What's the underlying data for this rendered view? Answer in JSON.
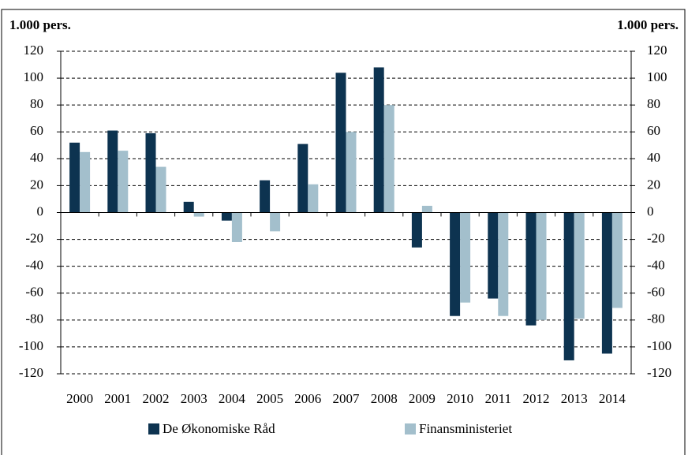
{
  "chart_data": {
    "type": "bar",
    "y_label": "1.000 pers.",
    "y2_label": "1.000 pers.",
    "categories": [
      "2000",
      "2001",
      "2002",
      "2003",
      "2004",
      "2005",
      "2006",
      "2007",
      "2008",
      "2009",
      "2010",
      "2011",
      "2012",
      "2013",
      "2014"
    ],
    "series": [
      {
        "name": "De Økonomiske Råd",
        "color": "#0d3350",
        "values": [
          52,
          61,
          59,
          8,
          -6,
          24,
          51,
          104,
          108,
          -26,
          -77,
          -64,
          -84,
          -110,
          -105
        ]
      },
      {
        "name": "Finansministeriet",
        "color": "#a3bfcc",
        "values": [
          45,
          46,
          34,
          -3,
          -22,
          -14,
          21,
          60,
          80,
          5,
          -67,
          -77,
          -80,
          -79,
          -71
        ]
      }
    ],
    "ylim": [
      -120,
      120
    ],
    "yticks": [
      -120,
      -100,
      -80,
      -60,
      -40,
      -20,
      0,
      20,
      40,
      60,
      80,
      100,
      120
    ],
    "y2lim": [
      -120,
      120
    ],
    "y2ticks": [
      -120,
      -100,
      -80,
      -60,
      -40,
      -20,
      0,
      20,
      40,
      60,
      80,
      100,
      120
    ],
    "grid": true,
    "legend": "bottom"
  }
}
